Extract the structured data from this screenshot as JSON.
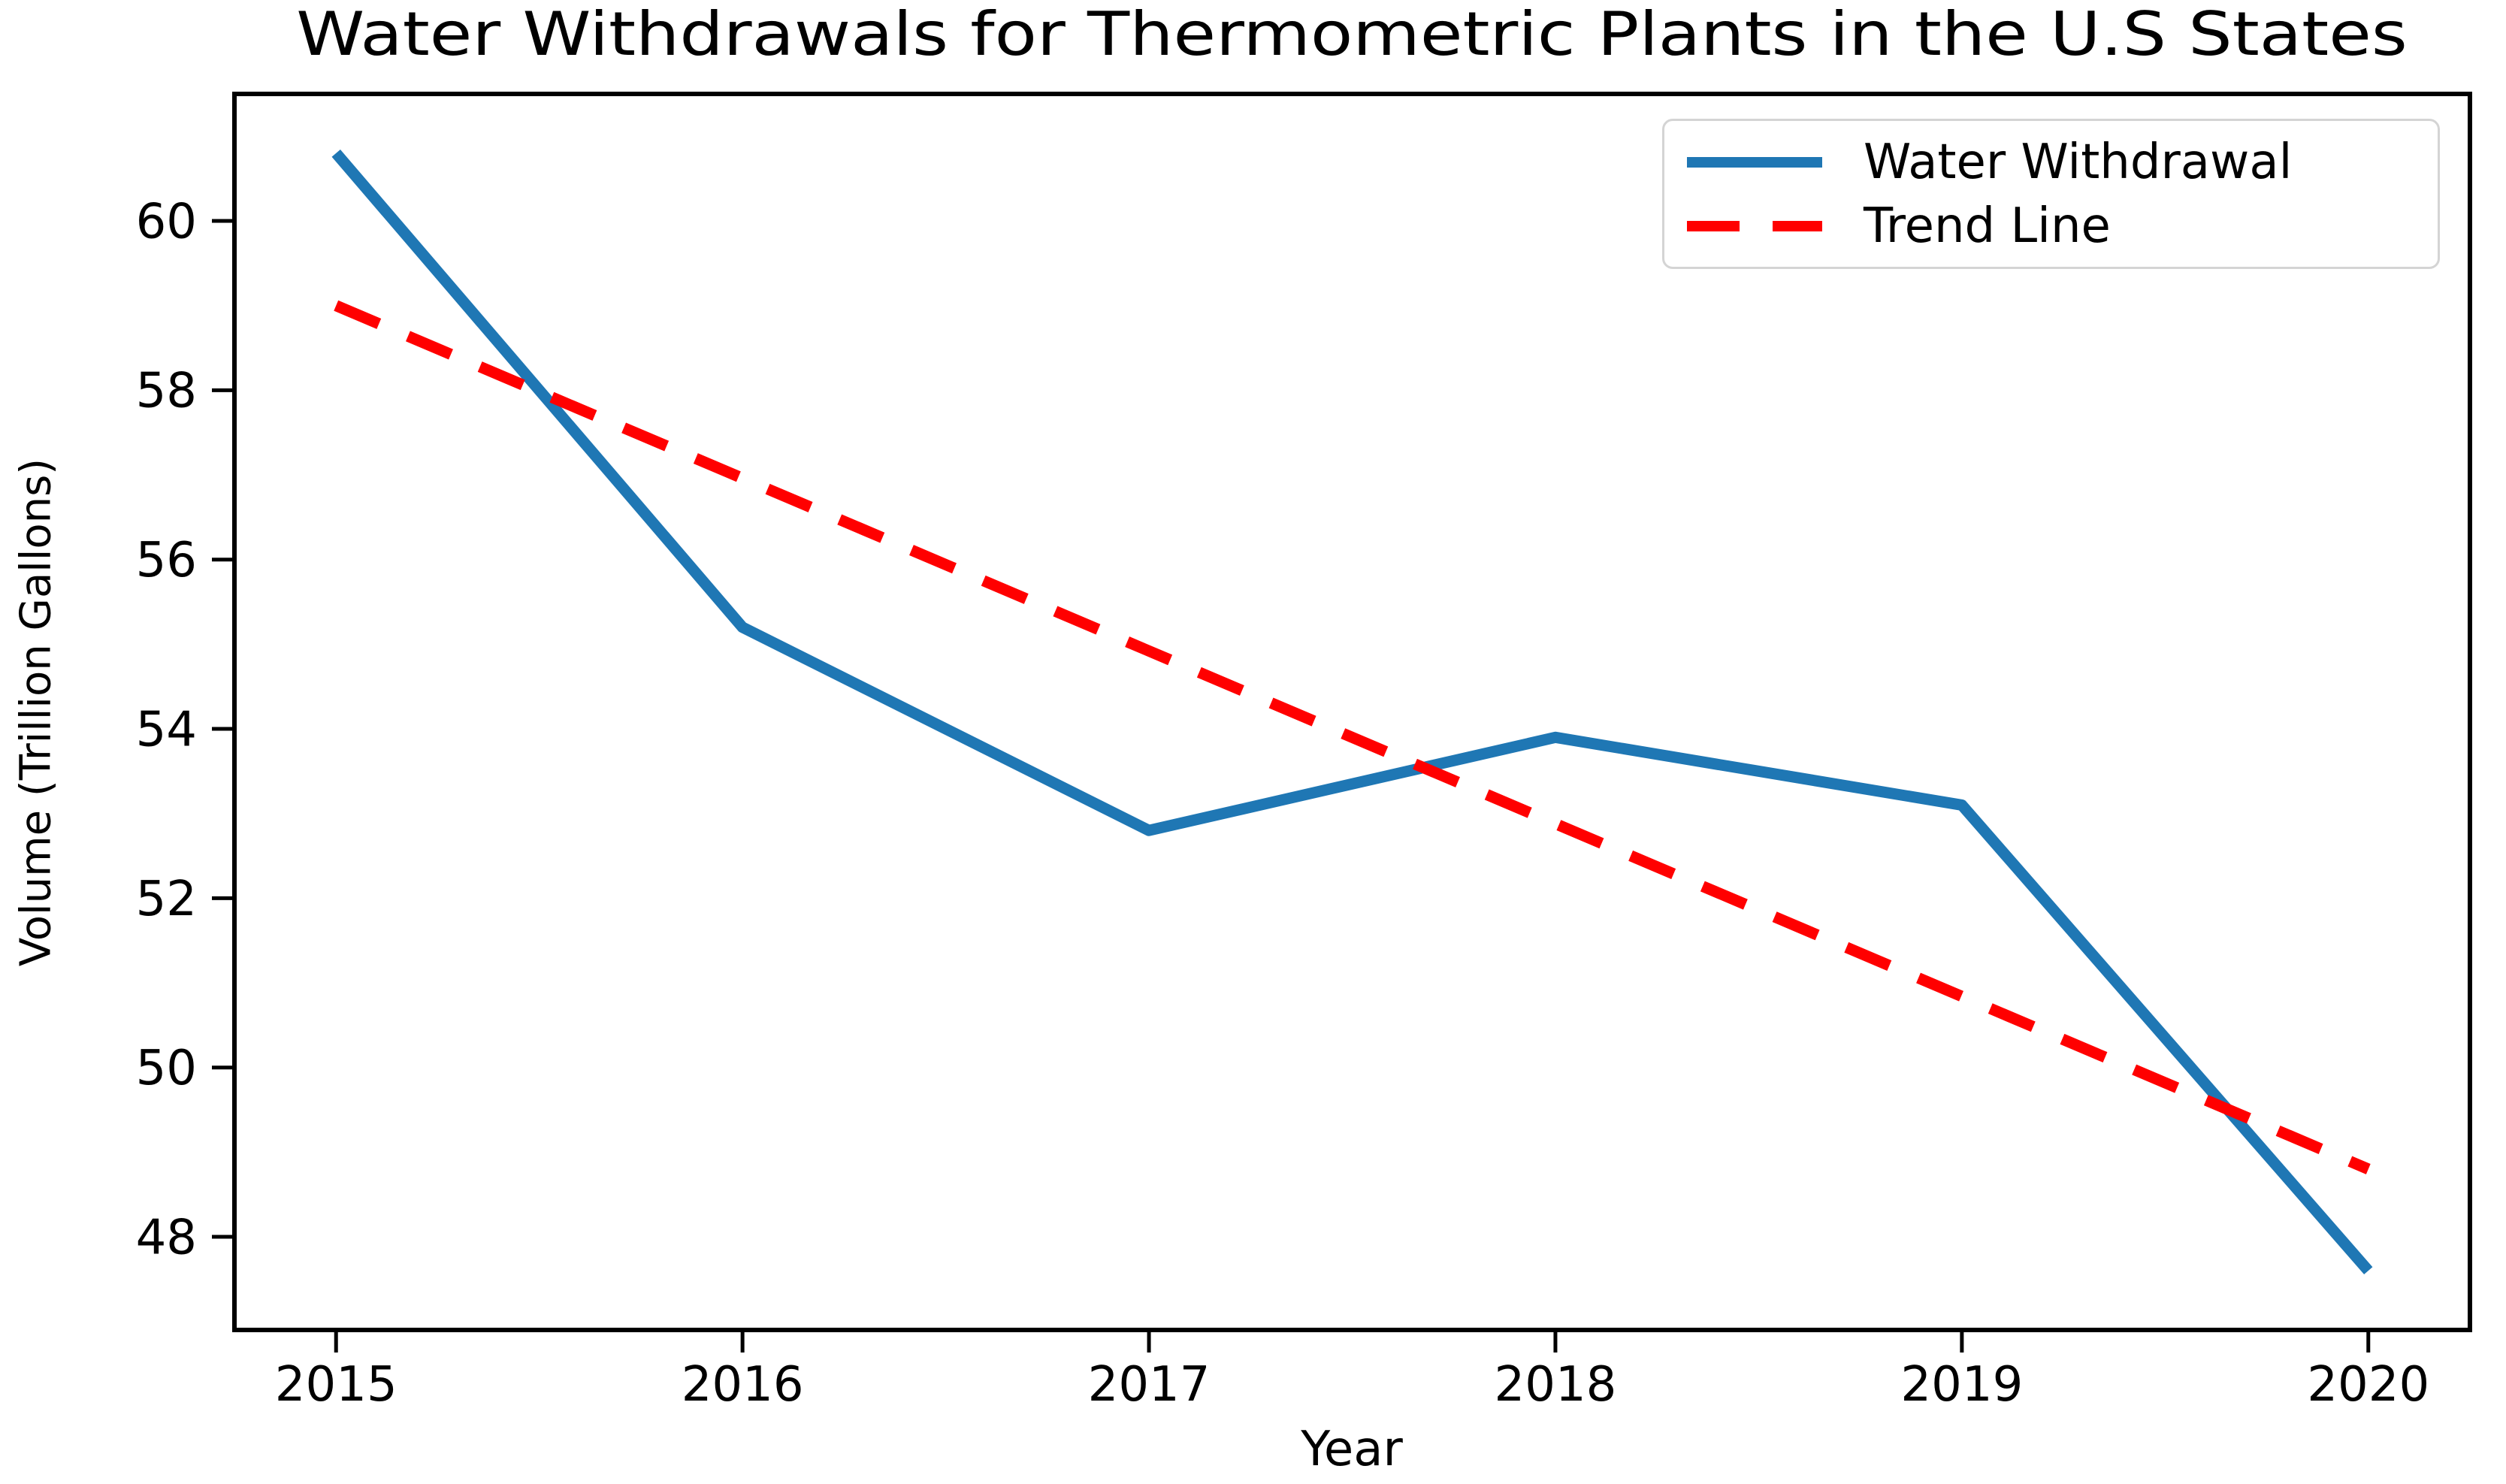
{
  "figure": {
    "background": "#ffffff"
  },
  "chart_data": {
    "type": "line",
    "title": "Water Withdrawals for Thermometric Plants in the U.S States",
    "xlabel": "Year",
    "ylabel": "Volume (Trillion Gallons)",
    "x": [
      2015,
      2016,
      2017,
      2018,
      2019,
      2020
    ],
    "series": [
      {
        "name": "Water Withdrawal",
        "values": [
          60.8,
          55.2,
          52.8,
          53.9,
          53.1,
          47.6
        ],
        "color": "#1f77b4",
        "style": "solid"
      },
      {
        "name": "Trend Line",
        "values": [
          59.0,
          56.96,
          54.92,
          52.88,
          50.84,
          48.8
        ],
        "color": "#ff0000",
        "style": "dashed"
      }
    ],
    "xticks": [
      2015,
      2016,
      2017,
      2018,
      2019,
      2020
    ],
    "yticks": [
      48,
      50,
      52,
      54,
      56,
      58,
      60
    ],
    "xlim": [
      2014.75,
      2020.25
    ],
    "ylim": [
      46.9,
      61.5
    ],
    "grid": false,
    "legend_position": "upper right",
    "axis_color": "#000000",
    "tick_label_color": "#000000"
  },
  "legend": {
    "items": [
      {
        "label": "Water Withdrawal",
        "color": "#1f77b4",
        "dash": false
      },
      {
        "label": "Trend Line",
        "color": "#ff0000",
        "dash": true
      }
    ]
  }
}
